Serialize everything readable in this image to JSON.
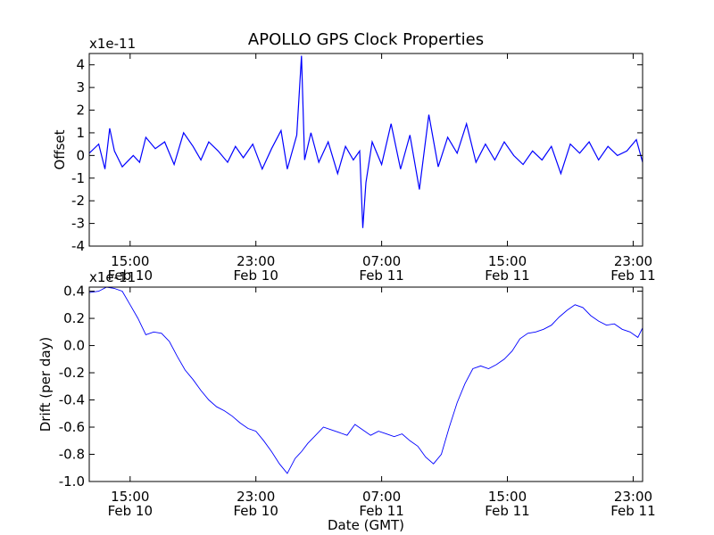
{
  "title": "APOLLO GPS Clock Properties",
  "chart_data": [
    {
      "type": "line",
      "ylabel": "Offset",
      "scale_label": "x1e-11",
      "ylim": [
        -4,
        4.5
      ],
      "y_ticks": [
        {
          "value": 4,
          "label": "4"
        },
        {
          "value": 3,
          "label": "3"
        },
        {
          "value": 2,
          "label": "2"
        },
        {
          "value": 1,
          "label": "1"
        },
        {
          "value": 0,
          "label": "0"
        },
        {
          "value": -1,
          "label": "-1"
        },
        {
          "value": -2,
          "label": "-2"
        },
        {
          "value": -3,
          "label": "-3"
        },
        {
          "value": -4,
          "label": "-4"
        }
      ],
      "x_ticks": [
        {
          "hour": 15,
          "time": "15:00",
          "date": "Feb 10"
        },
        {
          "hour": 23,
          "time": "23:00",
          "date": "Feb 10"
        },
        {
          "hour": 31,
          "time": "07:00",
          "date": "Feb 11"
        },
        {
          "hour": 39,
          "time": "15:00",
          "date": "Feb 11"
        },
        {
          "hour": 47,
          "time": "23:00",
          "date": "Feb 11"
        }
      ],
      "xlim_hours": [
        12.4,
        47.6
      ],
      "color": "#0000ff",
      "series": [
        {
          "x": [
            12.4,
            13.0,
            13.4,
            13.7,
            14.0,
            14.5,
            15.2,
            15.6,
            16.0,
            16.6,
            17.2,
            17.8,
            18.4,
            19.0,
            19.5,
            20.0,
            20.6,
            21.2,
            21.7,
            22.2,
            22.8,
            23.4,
            24.0,
            24.6,
            25.0,
            25.6,
            25.9,
            26.1,
            26.5,
            27.0,
            27.6,
            28.2,
            28.7,
            29.2,
            29.6,
            29.8,
            30.0,
            30.4,
            31.0,
            31.6,
            32.2,
            32.8,
            33.4,
            34.0,
            34.6,
            35.2,
            35.8,
            36.4,
            37.0,
            37.6,
            38.2,
            38.8,
            39.4,
            40.0,
            40.6,
            41.2,
            41.8,
            42.4,
            43.0,
            43.6,
            44.2,
            44.8,
            45.4,
            46.0,
            46.6,
            47.2,
            47.6
          ],
          "y": [
            0.1,
            0.5,
            -0.6,
            1.2,
            0.2,
            -0.5,
            0.0,
            -0.3,
            0.8,
            0.3,
            0.6,
            -0.4,
            1.0,
            0.4,
            -0.2,
            0.6,
            0.2,
            -0.3,
            0.4,
            -0.1,
            0.5,
            -0.6,
            0.3,
            1.1,
            -0.6,
            0.9,
            4.4,
            -0.2,
            1.0,
            -0.3,
            0.6,
            -0.8,
            0.4,
            -0.2,
            0.2,
            -3.2,
            -1.2,
            0.6,
            -0.4,
            1.4,
            -0.6,
            0.9,
            -1.5,
            1.8,
            -0.5,
            0.8,
            0.1,
            1.4,
            -0.3,
            0.5,
            -0.2,
            0.6,
            0.0,
            -0.4,
            0.2,
            -0.2,
            0.4,
            -0.8,
            0.5,
            0.1,
            0.6,
            -0.2,
            0.4,
            0.0,
            0.2,
            0.7,
            -0.3
          ]
        }
      ]
    },
    {
      "type": "line",
      "xlabel": "Date (GMT)",
      "ylabel": "Drift (per day)",
      "scale_label": "x1e-11",
      "ylim": [
        -1.0,
        0.43
      ],
      "y_ticks": [
        {
          "value": 0.4,
          "label": "0.4"
        },
        {
          "value": 0.2,
          "label": "0.2"
        },
        {
          "value": 0.0,
          "label": "0.0"
        },
        {
          "value": -0.2,
          "label": "-0.2"
        },
        {
          "value": -0.4,
          "label": "-0.4"
        },
        {
          "value": -0.6,
          "label": "-0.6"
        },
        {
          "value": -0.8,
          "label": "-0.8"
        },
        {
          "value": -1.0,
          "label": "-1.0"
        }
      ],
      "x_ticks": [
        {
          "hour": 15,
          "time": "15:00",
          "date": "Feb 10"
        },
        {
          "hour": 23,
          "time": "23:00",
          "date": "Feb 10"
        },
        {
          "hour": 31,
          "time": "07:00",
          "date": "Feb 11"
        },
        {
          "hour": 39,
          "time": "15:00",
          "date": "Feb 11"
        },
        {
          "hour": 47,
          "time": "23:00",
          "date": "Feb 11"
        }
      ],
      "xlim_hours": [
        12.4,
        47.6
      ],
      "color": "#0000ff",
      "series": [
        {
          "x": [
            12.4,
            13.0,
            13.5,
            14.0,
            14.5,
            15.0,
            15.5,
            16.0,
            16.5,
            17.0,
            17.5,
            18.0,
            18.5,
            19.0,
            19.5,
            20.0,
            20.5,
            21.0,
            21.5,
            22.0,
            22.5,
            23.0,
            23.5,
            24.0,
            24.5,
            25.0,
            25.5,
            25.9,
            26.3,
            26.8,
            27.3,
            27.8,
            28.3,
            28.8,
            29.3,
            29.8,
            30.3,
            30.8,
            31.3,
            31.8,
            32.3,
            32.8,
            33.3,
            33.8,
            34.3,
            34.8,
            35.3,
            35.8,
            36.3,
            36.8,
            37.3,
            37.8,
            38.3,
            38.8,
            39.3,
            39.8,
            40.3,
            40.8,
            41.3,
            41.8,
            42.3,
            42.8,
            43.3,
            43.8,
            44.3,
            44.8,
            45.3,
            45.8,
            46.3,
            46.8,
            47.3,
            47.6
          ],
          "y": [
            0.39,
            0.4,
            0.43,
            0.42,
            0.4,
            0.3,
            0.2,
            0.08,
            0.1,
            0.09,
            0.03,
            -0.08,
            -0.18,
            -0.25,
            -0.33,
            -0.4,
            -0.45,
            -0.48,
            -0.52,
            -0.57,
            -0.61,
            -0.63,
            -0.7,
            -0.78,
            -0.87,
            -0.94,
            -0.83,
            -0.78,
            -0.72,
            -0.66,
            -0.6,
            -0.62,
            -0.64,
            -0.66,
            -0.58,
            -0.62,
            -0.66,
            -0.63,
            -0.65,
            -0.67,
            -0.65,
            -0.7,
            -0.74,
            -0.82,
            -0.87,
            -0.8,
            -0.6,
            -0.42,
            -0.28,
            -0.17,
            -0.15,
            -0.17,
            -0.14,
            -0.1,
            -0.04,
            0.05,
            0.09,
            0.1,
            0.12,
            0.15,
            0.21,
            0.26,
            0.3,
            0.28,
            0.22,
            0.18,
            0.15,
            0.16,
            0.12,
            0.1,
            0.06,
            0.13
          ]
        }
      ]
    }
  ]
}
